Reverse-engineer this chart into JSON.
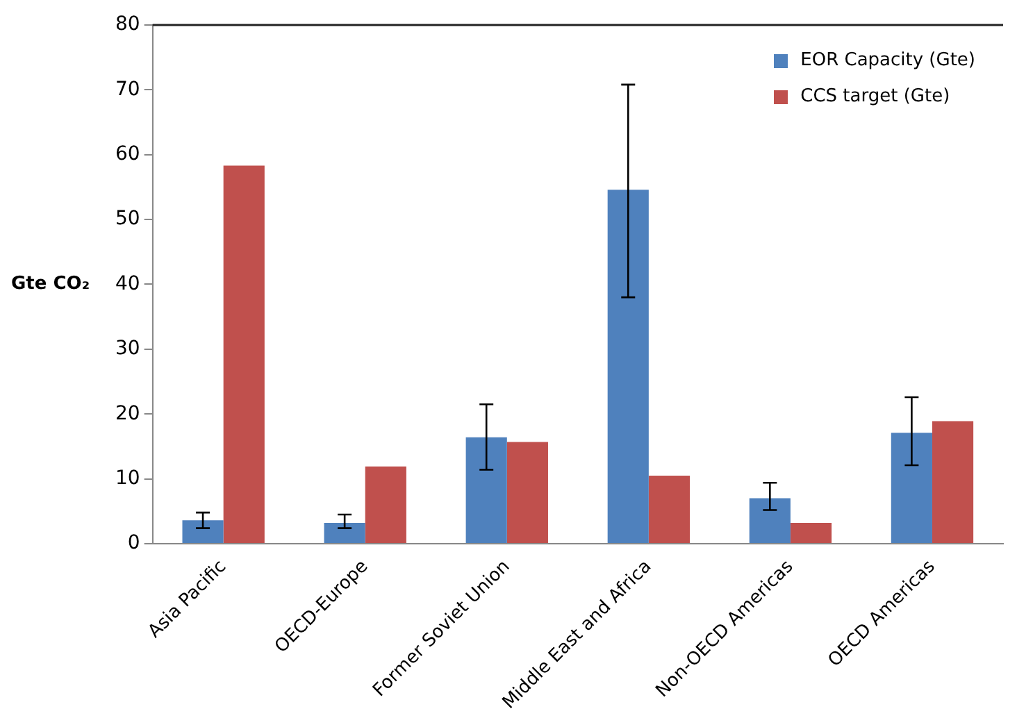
{
  "chart_data": {
    "type": "bar",
    "ylabel": "Gte CO₂",
    "categories": [
      "Asia Pacific",
      "OECD-Europe",
      "Former Soviet Union",
      "Middle East and Africa",
      "Non-OECD Americas",
      "OECD Americas"
    ],
    "series": [
      {
        "name": "EOR Capacity (Gte)",
        "color": "#4f81bd",
        "values": [
          3.6,
          3.2,
          16.4,
          54.6,
          7.0,
          17.1
        ],
        "errors": [
          [
            2.4,
            4.8
          ],
          [
            2.4,
            4.5
          ],
          [
            11.4,
            21.5
          ],
          [
            38.0,
            70.8
          ],
          [
            5.2,
            9.4
          ],
          [
            12.1,
            22.6
          ]
        ]
      },
      {
        "name": "CCS target (Gte)",
        "color": "#c0504d",
        "values": [
          58.3,
          11.9,
          15.7,
          10.5,
          3.2,
          18.9
        ]
      }
    ],
    "ylim": [
      0,
      80
    ],
    "yticks": [
      0,
      10,
      20,
      30,
      40,
      50,
      60,
      70,
      80
    ],
    "grid": false,
    "legend": "top right"
  }
}
